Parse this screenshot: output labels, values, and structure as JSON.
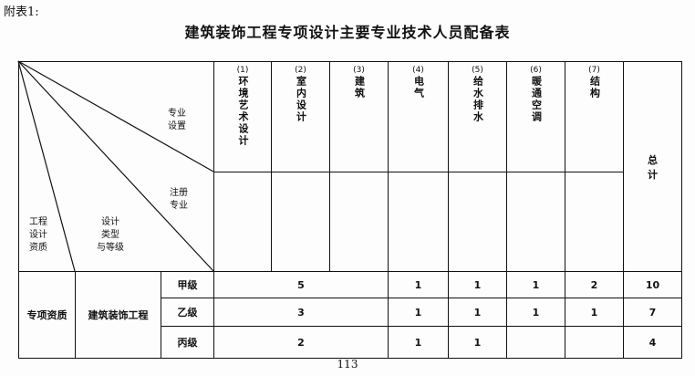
{
  "caption": "附表1:",
  "title": "建筑装饰工程专项设计主要专业技术人员配备表",
  "corner": {
    "specialty_setup": "专业\n设置",
    "registered_specialty": "注册\n专业",
    "design_type_grade": "设计\n类型\n与等级",
    "engineering_qualification": "工程\n设计\n资质"
  },
  "columns": [
    {
      "num": "(1)",
      "label": "环境艺术设计"
    },
    {
      "num": "(2)",
      "label": "室内设计"
    },
    {
      "num": "(3)",
      "label": "建筑"
    },
    {
      "num": "(4)",
      "label": "电气"
    },
    {
      "num": "(5)",
      "label": "给水排水"
    },
    {
      "num": "(6)",
      "label": "暖通空调"
    },
    {
      "num": "(7)",
      "label": "结构"
    }
  ],
  "total_label": "总\n计",
  "body": {
    "qualification": "专项资质",
    "project_type": "建筑装饰工程",
    "rows": [
      {
        "grade": "甲级",
        "cols_1_3": "5",
        "c4": "1",
        "c5": "1",
        "c6": "1",
        "c7": "2",
        "total": "10"
      },
      {
        "grade": "乙级",
        "cols_1_3": "3",
        "c4": "1",
        "c5": "1",
        "c6": "1",
        "c7": "1",
        "total": "7"
      },
      {
        "grade": "丙级",
        "cols_1_3": "2",
        "c4": "1",
        "c5": "1",
        "c6": "",
        "c7": "",
        "total": "4"
      }
    ]
  },
  "page_number": "113"
}
